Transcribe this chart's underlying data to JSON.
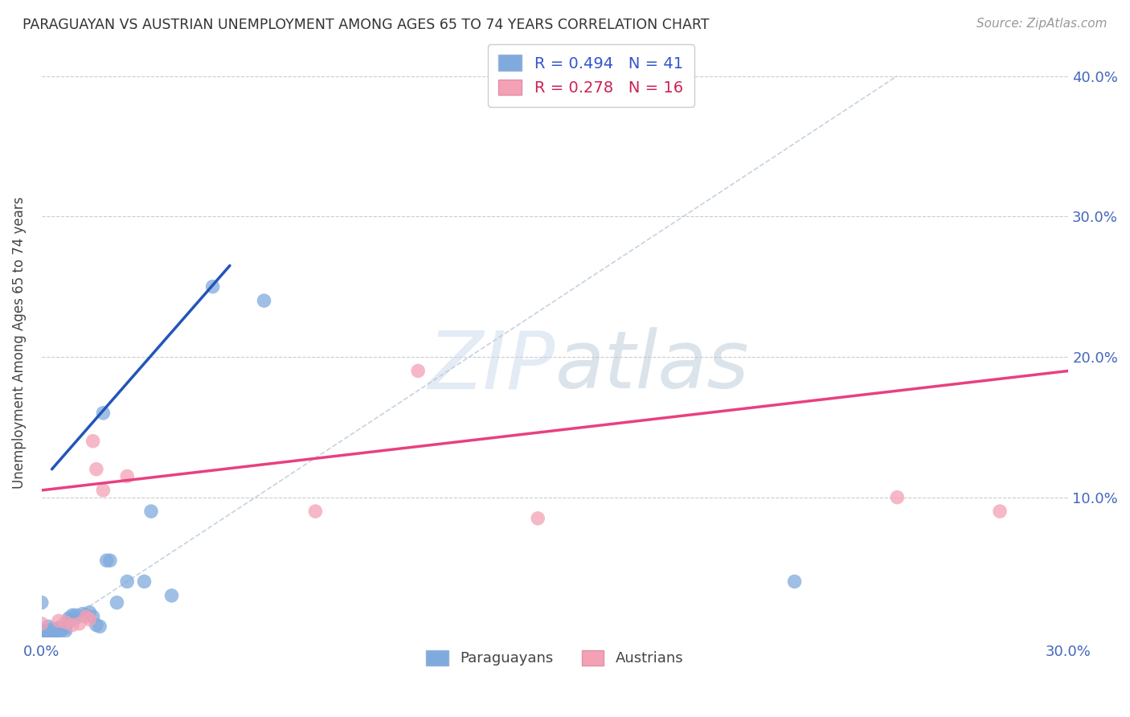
{
  "title": "PARAGUAYAN VS AUSTRIAN UNEMPLOYMENT AMONG AGES 65 TO 74 YEARS CORRELATION CHART",
  "source": "Source: ZipAtlas.com",
  "ylabel": "Unemployment Among Ages 65 to 74 years",
  "xlim": [
    0.0,
    0.3
  ],
  "ylim": [
    0.0,
    0.42
  ],
  "xticks": [
    0.0,
    0.05,
    0.1,
    0.15,
    0.2,
    0.25,
    0.3
  ],
  "xtick_labels": [
    "0.0%",
    "",
    "",
    "",
    "",
    "",
    "30.0%"
  ],
  "yticks_right": [
    0.1,
    0.2,
    0.3,
    0.4
  ],
  "ytick_right_labels": [
    "10.0%",
    "20.0%",
    "30.0%",
    "40.0%"
  ],
  "paraguayan_r": 0.494,
  "paraguayan_n": 41,
  "austrian_r": 0.278,
  "austrian_n": 16,
  "paraguayan_color": "#7faadd",
  "austrian_color": "#f4a0b5",
  "paraguayan_line_color": "#2255bb",
  "austrian_line_color": "#e84080",
  "paraguayan_x": [
    0.0,
    0.001,
    0.001,
    0.002,
    0.002,
    0.002,
    0.003,
    0.003,
    0.003,
    0.004,
    0.004,
    0.005,
    0.005,
    0.005,
    0.006,
    0.006,
    0.007,
    0.007,
    0.008,
    0.008,
    0.009,
    0.009,
    0.01,
    0.01,
    0.012,
    0.013,
    0.014,
    0.015,
    0.016,
    0.017,
    0.018,
    0.019,
    0.02,
    0.022,
    0.025,
    0.03,
    0.032,
    0.038,
    0.05,
    0.065,
    0.22
  ],
  "paraguayan_y": [
    0.025,
    0.005,
    0.003,
    0.008,
    0.005,
    0.003,
    0.006,
    0.004,
    0.003,
    0.005,
    0.003,
    0.007,
    0.005,
    0.003,
    0.008,
    0.006,
    0.007,
    0.005,
    0.014,
    0.012,
    0.016,
    0.013,
    0.016,
    0.014,
    0.017,
    0.016,
    0.018,
    0.015,
    0.009,
    0.008,
    0.16,
    0.055,
    0.055,
    0.025,
    0.04,
    0.04,
    0.09,
    0.03,
    0.25,
    0.24,
    0.04
  ],
  "austrian_x": [
    0.0,
    0.005,
    0.007,
    0.009,
    0.011,
    0.013,
    0.014,
    0.015,
    0.016,
    0.018,
    0.025,
    0.08,
    0.11,
    0.145,
    0.25,
    0.28
  ],
  "austrian_y": [
    0.01,
    0.012,
    0.011,
    0.009,
    0.01,
    0.015,
    0.013,
    0.14,
    0.12,
    0.105,
    0.115,
    0.09,
    0.19,
    0.085,
    0.1,
    0.09
  ],
  "paraguayan_trend_x": [
    0.003,
    0.055
  ],
  "paraguayan_trend_y": [
    0.12,
    0.265
  ],
  "austrian_trend_x": [
    0.0,
    0.3
  ],
  "austrian_trend_y": [
    0.105,
    0.19
  ],
  "identity_line_x": [
    0.0,
    0.25
  ],
  "identity_line_y": [
    0.0,
    0.4
  ]
}
